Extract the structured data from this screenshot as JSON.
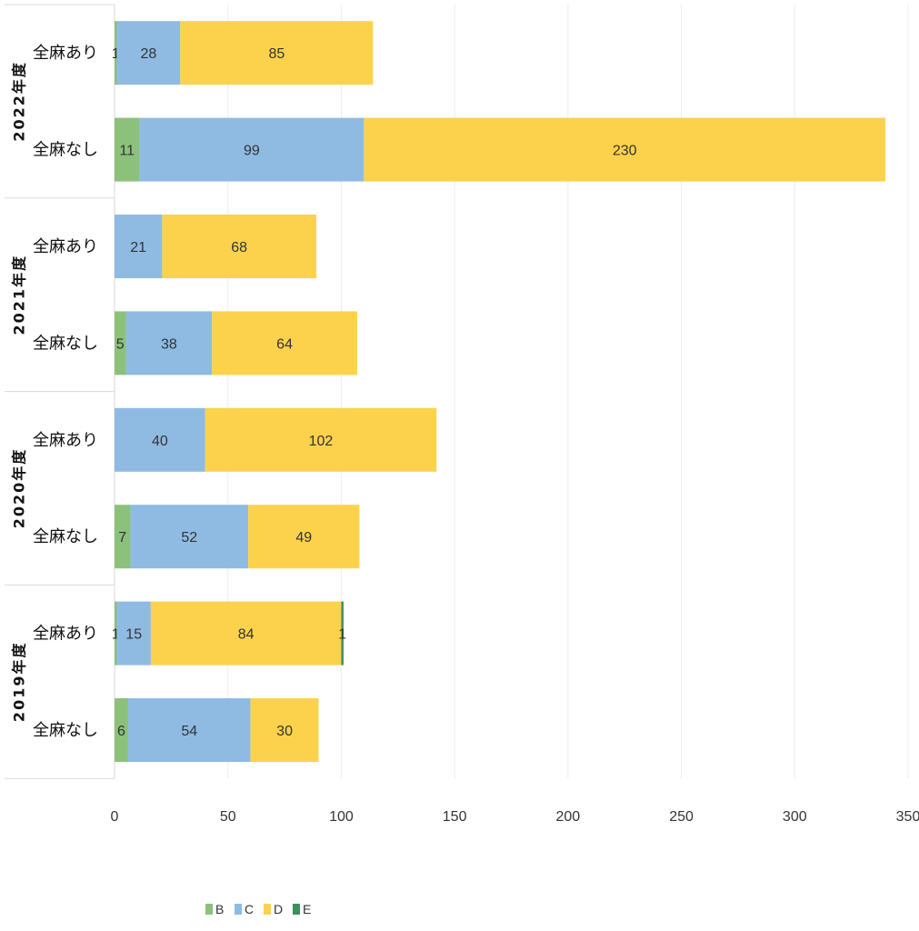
{
  "chart_data": {
    "type": "bar",
    "orientation": "horizontal",
    "stacked": true,
    "title": "",
    "xlabel": "",
    "ylabel": "",
    "xlim": [
      0,
      350
    ],
    "x_ticks": [
      0,
      50,
      100,
      150,
      200,
      250,
      300,
      350
    ],
    "grid": true,
    "legend_position": "bottom",
    "groups": [
      {
        "year": "2022年度",
        "categories": [
          "全麻あり",
          "全麻なし"
        ]
      },
      {
        "year": "2021年度",
        "categories": [
          "全麻あり",
          "全麻なし"
        ]
      },
      {
        "year": "2020年度",
        "categories": [
          "全麻あり",
          "全麻なし"
        ]
      },
      {
        "year": "2019年度",
        "categories": [
          "全麻あり",
          "全麻なし"
        ]
      }
    ],
    "series": [
      {
        "name": "B",
        "color": "#8cc17c",
        "values": [
          1,
          11,
          0,
          5,
          0,
          7,
          1,
          6
        ]
      },
      {
        "name": "C",
        "color": "#8fbbe3",
        "values": [
          28,
          99,
          21,
          38,
          40,
          52,
          15,
          54
        ]
      },
      {
        "name": "D",
        "color": "#fcd24d",
        "values": [
          85,
          230,
          68,
          64,
          102,
          49,
          84,
          30
        ]
      },
      {
        "name": "E",
        "color": "#3f8f5a",
        "values": [
          0,
          0,
          0,
          0,
          0,
          0,
          1,
          0
        ]
      }
    ]
  }
}
